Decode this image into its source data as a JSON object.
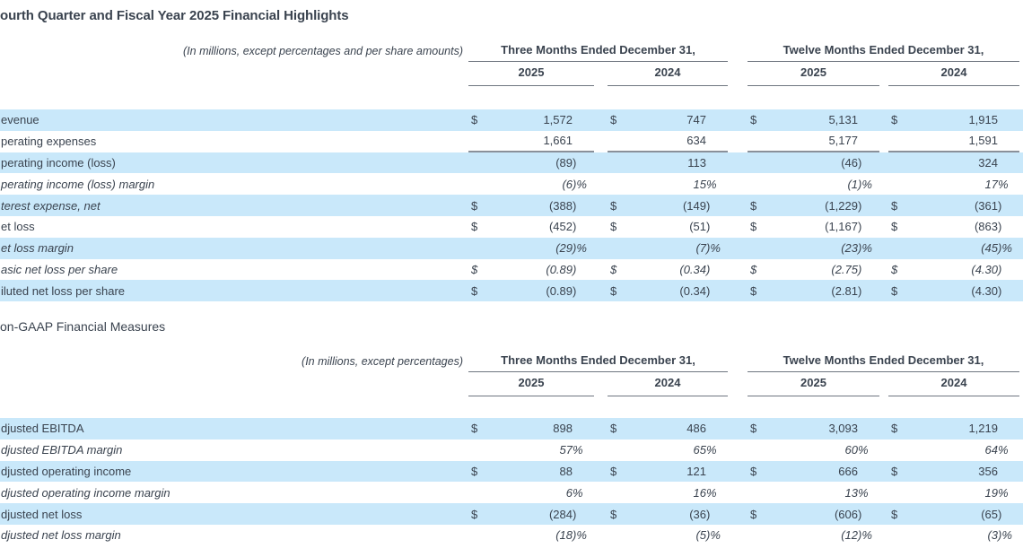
{
  "currency_symbol": "$",
  "colors": {
    "row_highlight": "#C9E8FA",
    "text": "#3A434F",
    "header_rule": "#6F7680",
    "subtotal_rule": "#8A9099"
  },
  "page": {
    "title": "ourth Quarter and Fiscal Year 2025 Financial Highlights",
    "section2_title": "on-GAAP Financial Measures"
  },
  "table1": {
    "units_note": "(In millions, except percentages and per share amounts)",
    "col_groups": [
      "Three Months Ended December 31,",
      "Twelve Months Ended December 31,"
    ],
    "years": [
      "2025",
      "2024",
      "2025",
      "2024"
    ],
    "rows": [
      {
        "label": "evenue",
        "highlight": true,
        "dollar": true,
        "label_italic": false,
        "values_italic": false,
        "rule_after": false,
        "values": [
          "1,572",
          "747",
          "5,131",
          "1,915"
        ]
      },
      {
        "label": "perating expenses",
        "highlight": false,
        "dollar": false,
        "label_italic": false,
        "values_italic": false,
        "rule_after": true,
        "values": [
          "1,661",
          "634",
          "5,177",
          "1,591"
        ]
      },
      {
        "label": "perating income (loss)",
        "highlight": true,
        "dollar": false,
        "label_italic": false,
        "values_italic": false,
        "rule_after": false,
        "values": [
          "(89)",
          "113",
          "(46)",
          "324"
        ]
      },
      {
        "label": "perating income (loss) margin",
        "highlight": false,
        "dollar": false,
        "label_italic": true,
        "values_italic": true,
        "rule_after": false,
        "values": [
          "(6)%",
          "15%",
          "(1)%",
          "17%"
        ]
      },
      {
        "label": "terest expense, net",
        "highlight": true,
        "dollar": true,
        "label_italic": true,
        "values_italic": false,
        "rule_after": false,
        "values": [
          "(388)",
          "(149)",
          "(1,229)",
          "(361)"
        ]
      },
      {
        "label": "et loss",
        "highlight": false,
        "dollar": true,
        "label_italic": false,
        "values_italic": false,
        "rule_after": false,
        "values": [
          "(452)",
          "(51)",
          "(1,167)",
          "(863)"
        ]
      },
      {
        "label": "et loss margin",
        "highlight": true,
        "dollar": false,
        "label_italic": true,
        "values_italic": true,
        "rule_after": false,
        "values": [
          "(29)%",
          "(7)%",
          "(23)%",
          "(45)%"
        ]
      },
      {
        "label": "asic net loss per share",
        "highlight": false,
        "dollar": true,
        "label_italic": true,
        "values_italic": true,
        "rule_after": false,
        "values": [
          "(0.89)",
          "(0.34)",
          "(2.75)",
          "(4.30)"
        ]
      },
      {
        "label": "iluted net loss per share",
        "highlight": true,
        "dollar": true,
        "label_italic": false,
        "values_italic": false,
        "rule_after": false,
        "values": [
          "(0.89)",
          "(0.34)",
          "(2.81)",
          "(4.30)"
        ]
      }
    ]
  },
  "table2": {
    "units_note": "(In millions, except percentages)",
    "col_groups": [
      "Three Months Ended December 31,",
      "Twelve Months Ended December 31,"
    ],
    "years": [
      "2025",
      "2024",
      "2025",
      "2024"
    ],
    "rows": [
      {
        "label": "djusted EBITDA",
        "highlight": true,
        "dollar": true,
        "label_italic": false,
        "values_italic": false,
        "rule_after": false,
        "values": [
          "898",
          "486",
          "3,093",
          "1,219"
        ]
      },
      {
        "label": "djusted EBITDA margin",
        "highlight": false,
        "dollar": false,
        "label_italic": true,
        "values_italic": true,
        "rule_after": false,
        "values": [
          "57%",
          "65%",
          "60%",
          "64%"
        ]
      },
      {
        "label": "djusted operating income",
        "highlight": true,
        "dollar": true,
        "label_italic": false,
        "values_italic": false,
        "rule_after": false,
        "values": [
          "88",
          "121",
          "666",
          "356"
        ]
      },
      {
        "label": "djusted operating income margin",
        "highlight": false,
        "dollar": false,
        "label_italic": true,
        "values_italic": true,
        "rule_after": false,
        "values": [
          "6%",
          "16%",
          "13%",
          "19%"
        ]
      },
      {
        "label": "djusted net loss",
        "highlight": true,
        "dollar": true,
        "label_italic": false,
        "values_italic": false,
        "rule_after": false,
        "values": [
          "(284)",
          "(36)",
          "(606)",
          "(65)"
        ]
      },
      {
        "label": "djusted net loss margin",
        "highlight": false,
        "dollar": false,
        "label_italic": true,
        "values_italic": true,
        "rule_after": false,
        "values": [
          "(18)%",
          "(5)%",
          "(12)%",
          "(3)%"
        ]
      }
    ]
  }
}
